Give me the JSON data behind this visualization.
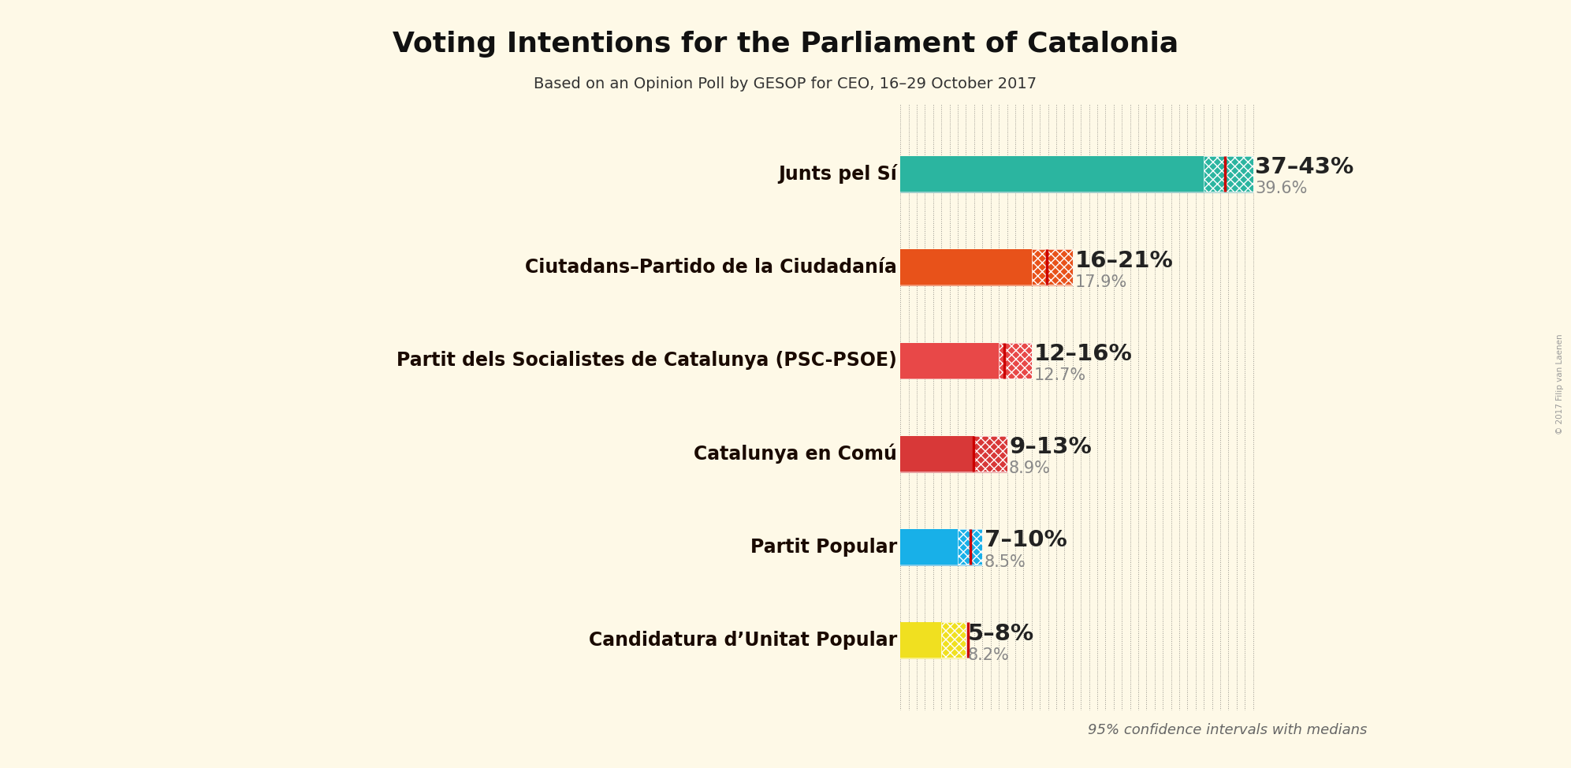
{
  "title": "Voting Intentions for the Parliament of Catalonia",
  "subtitle": "Based on an Opinion Poll by GESOP for CEO, 16–29 October 2017",
  "footnote": "95% confidence intervals with medians",
  "copyright": "© 2017 Filip van Laenen",
  "background_color": "#FEF9E7",
  "parties": [
    {
      "name": "Junts pel Sí",
      "ci_low": 37,
      "ci_high": 43,
      "median": 39.6,
      "color": "#2BB5A0",
      "color_light": "#9DCFCB",
      "label_range": "37–43%",
      "label_median": "39.6%"
    },
    {
      "name": "Ciutadans–Partido de la Ciudadanía",
      "ci_low": 16,
      "ci_high": 21,
      "median": 17.9,
      "color": "#E8521A",
      "color_light": "#F09A78",
      "label_range": "16–21%",
      "label_median": "17.9%"
    },
    {
      "name": "Partit dels Socialistes de Catalunya (PSC-PSOE)",
      "ci_low": 12,
      "ci_high": 16,
      "median": 12.7,
      "color": "#E84848",
      "color_light": "#F0A0A0",
      "label_range": "12–16%",
      "label_median": "12.7%"
    },
    {
      "name": "Catalunya en Comú",
      "ci_low": 9,
      "ci_high": 13,
      "median": 8.9,
      "color": "#D83838",
      "color_light": "#E8A0A0",
      "label_range": "9–13%",
      "label_median": "8.9%"
    },
    {
      "name": "Partit Popular",
      "ci_low": 7,
      "ci_high": 10,
      "median": 8.5,
      "color": "#18B0E8",
      "color_light": "#88CCE8",
      "label_range": "7–10%",
      "label_median": "8.5%"
    },
    {
      "name": "Candidatura d’Unitat Popular",
      "ci_low": 5,
      "ci_high": 8,
      "median": 8.2,
      "color": "#F0E020",
      "color_light": "#F8F090",
      "label_range": "5–8%",
      "label_median": "8.2%"
    }
  ],
  "xlim_data": [
    0,
    44
  ],
  "main_bar_height": 0.38,
  "ci_thin_bar_height": 0.15,
  "label_fontsize": 17,
  "range_fontsize": 21,
  "median_fontsize": 15,
  "title_fontsize": 26,
  "subtitle_fontsize": 14,
  "gridline_color": "#444444",
  "median_line_color": "#CC0000",
  "range_label_color": "#222222",
  "median_label_color": "#888888",
  "party_label_color": "#1A0A00",
  "footnote_color": "#666666",
  "copyright_color": "#999999"
}
